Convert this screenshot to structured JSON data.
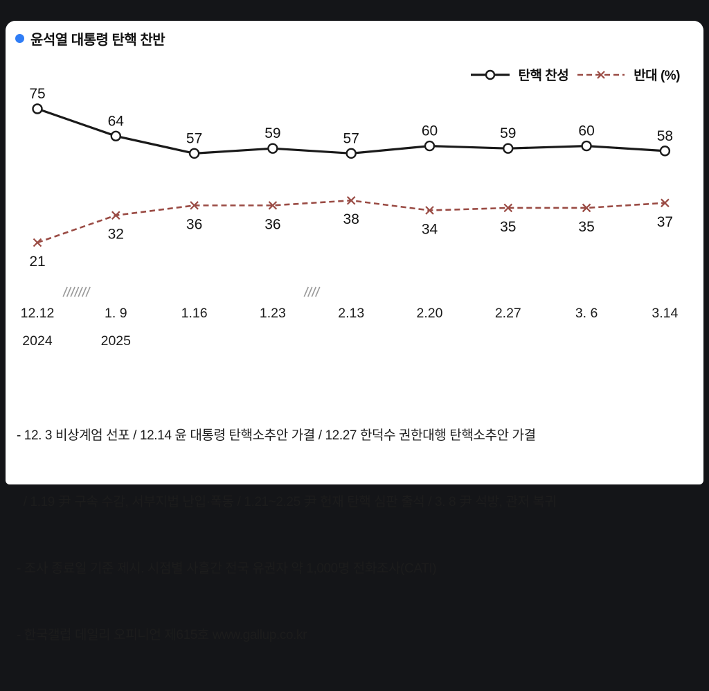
{
  "page": {
    "page_bg": "#141518",
    "card_bg": "#ffffff"
  },
  "title": {
    "bullet_color": "#2f7df6",
    "text": "윤석열 대통령 탄핵 찬반"
  },
  "legend": {
    "approve_label": "탄핵 찬성",
    "oppose_label": "반대 (%)"
  },
  "chart_data": {
    "type": "line",
    "title": "윤석열 대통령 탄핵 찬반",
    "x_labels": [
      "12.12",
      "1. 9",
      "1.16",
      "1.23",
      "2.13",
      "2.20",
      "2.27",
      "3. 6",
      "3.14"
    ],
    "year_labels": [
      {
        "index": 0,
        "text": "2024"
      },
      {
        "index": 1,
        "text": "2025"
      }
    ],
    "series": [
      {
        "name": "탄핵 찬성",
        "color": "#1a1a1a",
        "style": "solid",
        "marker": "circle",
        "values": [
          75,
          64,
          57,
          59,
          57,
          60,
          59,
          60,
          58
        ]
      },
      {
        "name": "반대 (%)",
        "color": "#9a4b44",
        "style": "dashed",
        "marker": "x",
        "values": [
          21,
          32,
          36,
          36,
          38,
          34,
          35,
          35,
          37
        ]
      }
    ],
    "axis_breaks": [
      {
        "between": [
          0,
          1
        ],
        "slashes": 7
      },
      {
        "between": [
          3,
          4
        ],
        "slashes": 4
      }
    ],
    "ylim": [
      15,
      80
    ],
    "unit": "%",
    "grid": false,
    "legend_position": "top-right"
  },
  "footnotes": [
    "- 12. 3 비상계엄 선포 / 12.14 윤 대통령 탄핵소추안 가결 / 12.27 한덕수 권한대행 탄핵소추안 가결",
    "  / 1.19 尹 구속 수감, 서부지법 난입·폭동 / 1.21~2.25 尹 헌재 탄핵 심판 출석 / 3. 8 尹 석방, 관저 복귀",
    "- 조사 종료일 기준 제시. 시점별 사흘간 전국 유권자 약 1,000명 전화조사(CATI)",
    "- 한국갤럽 데일리 오피니언 제615호 www.gallup.co.kr"
  ]
}
